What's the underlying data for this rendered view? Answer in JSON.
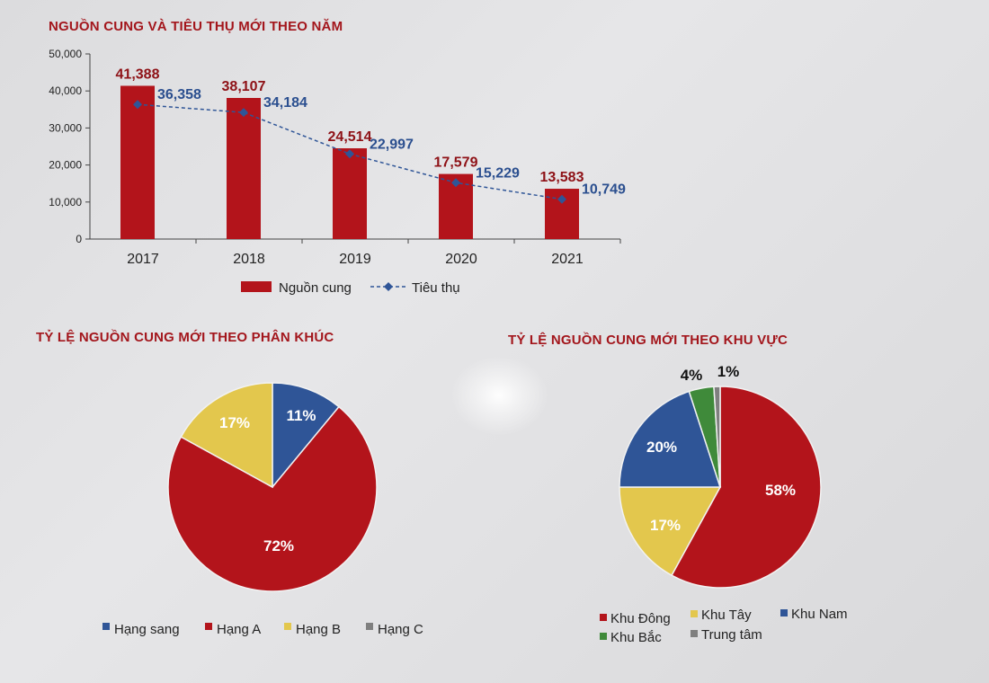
{
  "titles": {
    "bar": "NGUỒN CUNG VÀ TIÊU THỤ MỚI THEO NĂM",
    "pie1": "TỶ LỆ NGUỒN CUNG MỚI THEO PHÂN KHÚC",
    "pie2": "TỶ LỆ NGUỒN CUNG MỚI THEO KHU VỰC"
  },
  "chart_data": [
    {
      "type": "bar",
      "title": "NGUỒN CUNG VÀ TIÊU THỤ MỚI THEO NĂM",
      "categories": [
        "2017",
        "2018",
        "2019",
        "2020",
        "2021"
      ],
      "series": [
        {
          "name": "Nguồn cung",
          "kind": "bar",
          "values": [
            41388,
            38107,
            24514,
            17579,
            13583
          ],
          "labels": [
            "41,388",
            "38,107",
            "24,514",
            "17,579",
            "13,583"
          ]
        },
        {
          "name": "Tiêu thụ",
          "kind": "line",
          "style": "dashed",
          "marker": "diamond",
          "values": [
            36358,
            34184,
            22997,
            15229,
            10749
          ],
          "labels": [
            "36,358",
            "34,184",
            "22,997",
            "15,229",
            "10,749"
          ]
        }
      ],
      "yticks": [
        "0",
        "10,000",
        "20,000",
        "30,000",
        "40,000",
        "50,000"
      ],
      "ylim": [
        0,
        50000
      ],
      "legend_position": "bottom"
    },
    {
      "type": "pie",
      "title": "TỶ LỆ NGUỒN CUNG MỚI THEO PHÂN KHÚC",
      "slices": [
        {
          "name": "Hạng sang",
          "value": 11,
          "label": "11%",
          "color": "#2f5597"
        },
        {
          "name": "Hạng A",
          "value": 72,
          "label": "72%",
          "color": "#b3141b"
        },
        {
          "name": "Hạng B",
          "value": 17,
          "label": "17%",
          "color": "#e3c74d"
        },
        {
          "name": "Hạng C",
          "value": 0,
          "label": "",
          "color": "#7f7f7f"
        }
      ],
      "legend_position": "bottom"
    },
    {
      "type": "pie",
      "title": "TỶ LỆ NGUỒN CUNG MỚI THEO KHU VỰC",
      "slices": [
        {
          "name": "Khu Đông",
          "value": 58,
          "label": "58%",
          "color": "#b3141b"
        },
        {
          "name": "Khu Tây",
          "value": 17,
          "label": "17%",
          "color": "#e3c74d"
        },
        {
          "name": "Khu Nam",
          "value": 20,
          "label": "20%",
          "color": "#2f5597"
        },
        {
          "name": "Khu Bắc",
          "value": 4,
          "label": "4%",
          "color": "#3f8a3a"
        },
        {
          "name": "Trung tâm",
          "value": 1,
          "label": "1%",
          "color": "#7f7f7f"
        }
      ],
      "legend_position": "bottom"
    }
  ],
  "colors": {
    "title": "#a3161c",
    "bar": "#b3141b",
    "line": "#2f5597",
    "bar_label": "#8e1116",
    "line_label": "#2b4f8f"
  }
}
